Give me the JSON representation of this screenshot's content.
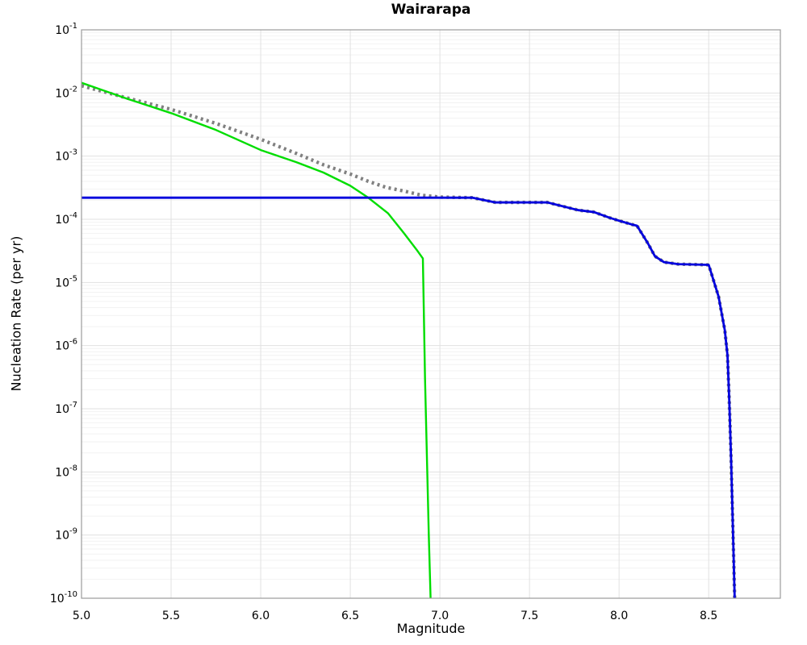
{
  "title": "Wairarapa",
  "axes": {
    "xlabel": "Magnitude",
    "ylabel": "Nucleation Rate (per yr)",
    "x_tick_labels": [
      "5.0",
      "5.5",
      "6.0",
      "6.5",
      "7.0",
      "7.5",
      "8.0",
      "8.5"
    ],
    "x_tick_values": [
      5.0,
      5.5,
      6.0,
      6.5,
      7.0,
      7.5,
      8.0,
      8.5
    ],
    "y_tick_base": "10",
    "y_tick_exponents": [
      -1,
      -2,
      -3,
      -4,
      -5,
      -6,
      -7,
      -8,
      -9,
      -10
    ]
  },
  "chart_data": {
    "type": "line",
    "title": "Wairarapa",
    "xlabel": "Magnitude",
    "ylabel": "Nucleation Rate (per yr)",
    "xlim": [
      5.0,
      8.9
    ],
    "ylim": [
      1e-10,
      0.1
    ],
    "yscale": "log",
    "grid": true,
    "legend": "none",
    "colors": {
      "background": "#ffffff",
      "spine": "#9b9b9b",
      "grid_major": "#e1e1e1",
      "grid_minor": "#f2f2f2",
      "tick_text": "#000000"
    },
    "series": [
      {
        "name": "gray-dotted-curve",
        "color": "#808080",
        "line_style": "dotted",
        "line_width": 4.3,
        "points": [
          [
            5.0,
            0.013
          ],
          [
            5.25,
            0.0084
          ],
          [
            5.5,
            0.0055
          ],
          [
            5.75,
            0.0033
          ],
          [
            6.0,
            0.00185
          ],
          [
            6.2,
            0.0011
          ],
          [
            6.35,
            0.00073
          ],
          [
            6.5,
            0.00052
          ],
          [
            6.6,
            0.0004
          ],
          [
            6.7,
            0.00032
          ],
          [
            6.8,
            0.00028
          ],
          [
            6.9,
            0.00024
          ],
          [
            7.0,
            0.000225
          ],
          [
            7.18,
            0.00022
          ],
          [
            7.31,
            0.000185
          ],
          [
            7.6,
            0.000185
          ],
          [
            7.77,
            0.00014
          ],
          [
            7.86,
            0.00013
          ],
          [
            7.95,
            0.000105
          ],
          [
            8.0,
            9.5e-05
          ],
          [
            8.07,
            8.3e-05
          ],
          [
            8.1,
            7.9e-05
          ],
          [
            8.16,
            4.2e-05
          ],
          [
            8.2,
            2.6e-05
          ],
          [
            8.25,
            2.1e-05
          ],
          [
            8.33,
            1.95e-05
          ],
          [
            8.5,
            1.9e-05
          ],
          [
            8.555,
            6e-06
          ],
          [
            8.59,
            1.75e-06
          ],
          [
            8.605,
            7e-07
          ],
          [
            8.615,
            1.3e-07
          ],
          [
            8.625,
            1.6e-08
          ],
          [
            8.635,
            1.3e-09
          ],
          [
            8.645,
            1e-10
          ]
        ]
      },
      {
        "name": "green-solid-curve",
        "color": "#00dd00",
        "line_style": "solid",
        "line_width": 2.4,
        "points": [
          [
            5.0,
            0.0145
          ],
          [
            5.25,
            0.0082
          ],
          [
            5.5,
            0.0048
          ],
          [
            5.75,
            0.0026
          ],
          [
            6.0,
            0.00125
          ],
          [
            6.2,
            0.0008
          ],
          [
            6.35,
            0.00055
          ],
          [
            6.5,
            0.00034
          ],
          [
            6.6,
            0.00022
          ],
          [
            6.71,
            0.000125
          ],
          [
            6.8,
            6e-05
          ],
          [
            6.87,
            3.3e-05
          ],
          [
            6.905,
            2.4e-05
          ],
          [
            6.917,
            3e-07
          ],
          [
            6.938,
            1e-09
          ],
          [
            6.948,
            1e-10
          ]
        ]
      },
      {
        "name": "blue-solid-curve",
        "color": "#0000dd",
        "line_style": "solid",
        "line_width": 2.8,
        "points": [
          [
            5.0,
            0.00022
          ],
          [
            7.0,
            0.00022
          ],
          [
            7.18,
            0.00022
          ],
          [
            7.31,
            0.000185
          ],
          [
            7.6,
            0.000185
          ],
          [
            7.77,
            0.00014
          ],
          [
            7.86,
            0.00013
          ],
          [
            7.95,
            0.000105
          ],
          [
            8.0,
            9.5e-05
          ],
          [
            8.07,
            8.3e-05
          ],
          [
            8.1,
            7.9e-05
          ],
          [
            8.16,
            4.2e-05
          ],
          [
            8.2,
            2.6e-05
          ],
          [
            8.25,
            2.1e-05
          ],
          [
            8.33,
            1.95e-05
          ],
          [
            8.5,
            1.9e-05
          ],
          [
            8.555,
            6e-06
          ],
          [
            8.59,
            1.75e-06
          ],
          [
            8.605,
            7e-07
          ],
          [
            8.615,
            1.3e-07
          ],
          [
            8.625,
            1.6e-08
          ],
          [
            8.635,
            1.3e-09
          ],
          [
            8.645,
            1e-10
          ]
        ]
      }
    ]
  }
}
